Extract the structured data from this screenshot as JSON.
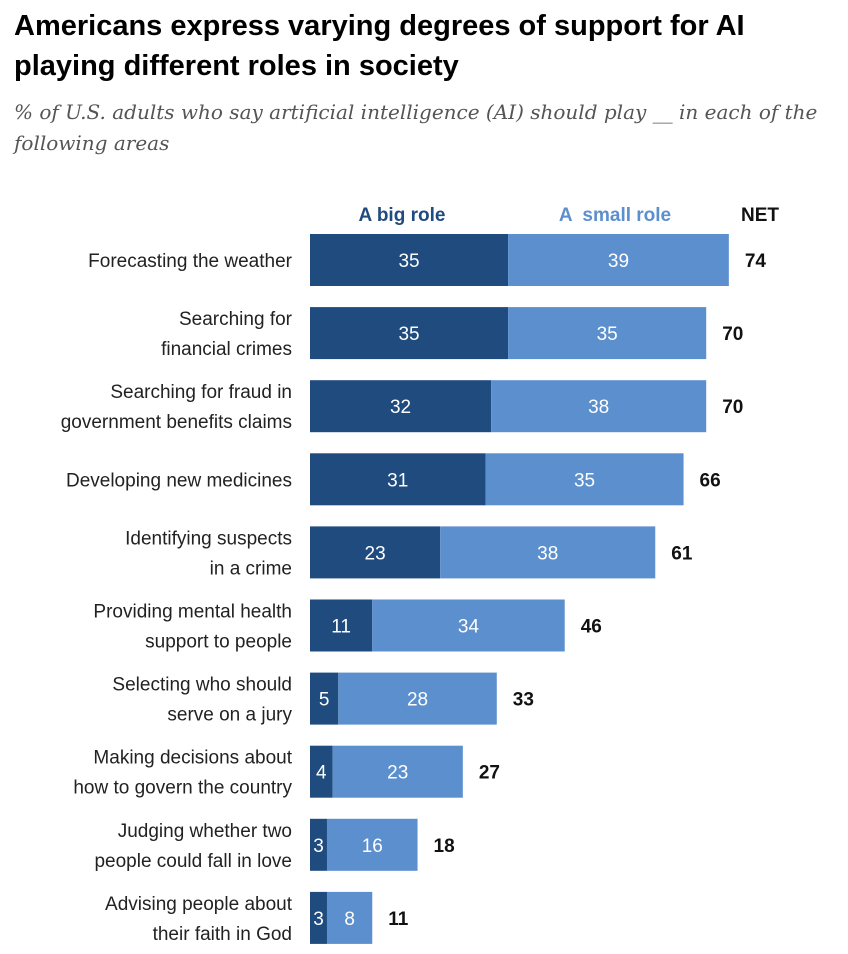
{
  "title": "Americans express varying degrees of support for AI playing different roles in society",
  "subtitle": "% of U.S. adults who say artificial intelligence (AI) should play __ in each of the following areas",
  "colors": {
    "big": "#1F4B7E",
    "small": "#5B8FCD",
    "big_text": "#1F4B7E",
    "small_text": "#5B8FCD"
  },
  "chart_data": {
    "type": "bar",
    "orientation": "horizontal",
    "stacked": true,
    "categories": [
      [
        "Forecasting the weather"
      ],
      [
        "Searching for",
        "financial crimes"
      ],
      [
        "Searching for fraud in",
        "government benefits claims"
      ],
      [
        "Developing new medicines"
      ],
      [
        "Identifying suspects",
        "in a crime"
      ],
      [
        "Providing mental health",
        "support to people"
      ],
      [
        "Selecting who should",
        "serve on a jury"
      ],
      [
        "Making decisions about",
        "how to govern the country"
      ],
      [
        "Judging whether two",
        "people could fall in love"
      ],
      [
        "Advising people about",
        "their faith in God"
      ]
    ],
    "series": [
      {
        "name": "A big role",
        "values": [
          35,
          35,
          32,
          31,
          23,
          11,
          5,
          4,
          3,
          3
        ]
      },
      {
        "name": "A  small role",
        "values": [
          39,
          35,
          38,
          35,
          38,
          34,
          28,
          23,
          16,
          8
        ]
      }
    ],
    "net_label": "NET",
    "net": [
      74,
      70,
      70,
      66,
      61,
      46,
      33,
      27,
      18,
      11
    ],
    "xlim": [
      0,
      100
    ],
    "grid": false,
    "legend": "top"
  }
}
